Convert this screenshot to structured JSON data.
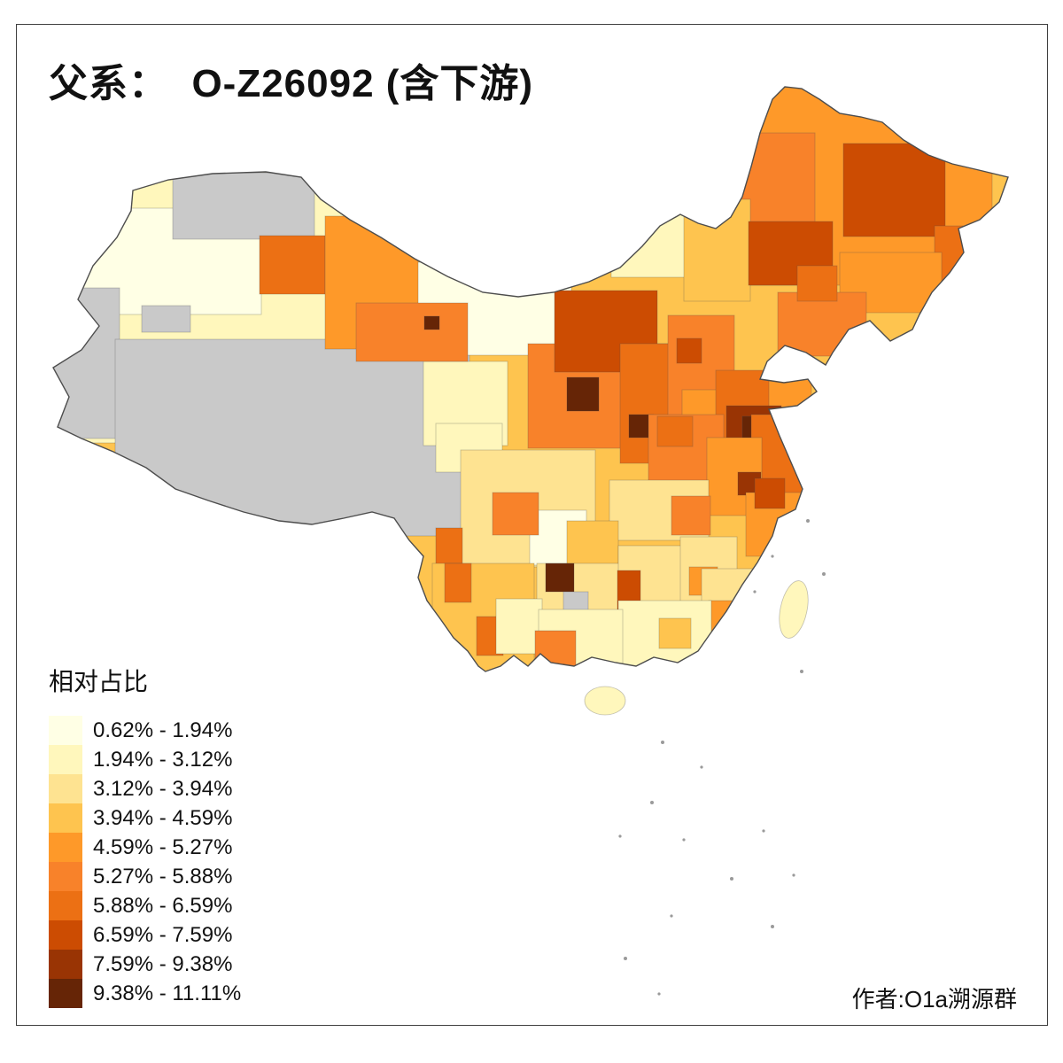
{
  "title": "父系：  O-Z26092 (含下游)",
  "legend": {
    "title": "相对占比",
    "classes": [
      {
        "label": "0.62% - 1.94%",
        "color": "#FFFFE5"
      },
      {
        "label": "1.94% - 3.12%",
        "color": "#FFF7BC"
      },
      {
        "label": "3.12% - 3.94%",
        "color": "#FEE391"
      },
      {
        "label": "3.94% - 4.59%",
        "color": "#FEC44F"
      },
      {
        "label": "4.59% - 5.27%",
        "color": "#FE9929"
      },
      {
        "label": "5.27% - 5.88%",
        "color": "#F8822A"
      },
      {
        "label": "5.88% - 6.59%",
        "color": "#EC7014"
      },
      {
        "label": "6.59% - 7.59%",
        "color": "#CC4C02"
      },
      {
        "label": "7.59% - 9.38%",
        "color": "#993404"
      },
      {
        "label": "9.38% - 11.11%",
        "color": "#662506"
      }
    ]
  },
  "credit": "作者:O1a溯源群",
  "map": {
    "no_data_color": "#C9C9C9",
    "outline_color": "#4D4D4D",
    "sea_mark_color": "#9A9A9A",
    "background": "#FFFFFF"
  }
}
